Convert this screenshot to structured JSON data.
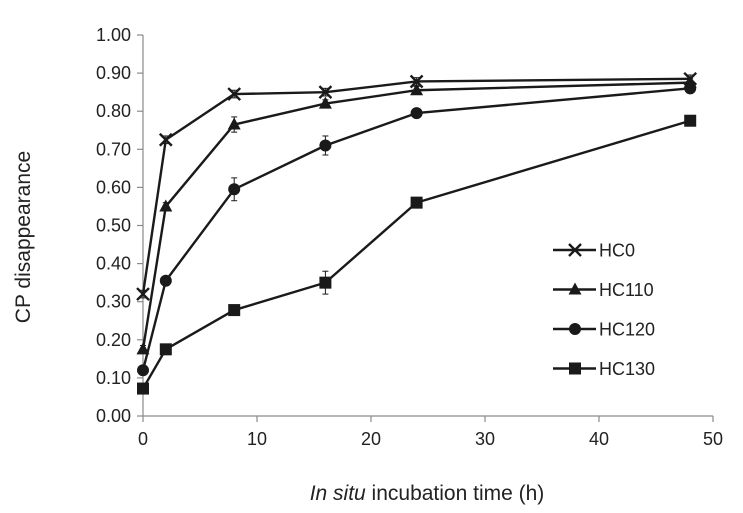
{
  "chart_data": {
    "type": "line",
    "xlabel_italic": "In situ",
    "xlabel_rest": " incubation time (h)",
    "ylabel": "CP disappearance",
    "xlim": [
      0,
      50
    ],
    "ylim": [
      0,
      1
    ],
    "xticks": [
      0,
      10,
      20,
      30,
      40,
      50
    ],
    "xtick_labels": [
      "0",
      "10",
      "20",
      "30",
      "40",
      "50"
    ],
    "yticks": [
      0,
      0.1,
      0.2,
      0.3,
      0.4,
      0.5,
      0.6,
      0.7,
      0.8,
      0.9,
      1.0
    ],
    "ytick_labels": [
      "0.00",
      "0.10",
      "0.20",
      "0.30",
      "0.40",
      "0.50",
      "0.60",
      "0.70",
      "0.80",
      "0.90",
      "1.00"
    ],
    "grid": false,
    "legend_position": "right",
    "line_color": "#1a1a1a",
    "x": [
      0,
      2,
      8,
      16,
      24,
      48
    ],
    "series": [
      {
        "name": "HC0",
        "marker": "x",
        "values": [
          0.32,
          0.725,
          0.845,
          0.85,
          0.878,
          0.885
        ],
        "errors": [
          0.01,
          0.01,
          0.01,
          0.01,
          0.01,
          0.01
        ]
      },
      {
        "name": "HC110",
        "marker": "triangle",
        "values": [
          0.175,
          0.55,
          0.765,
          0.82,
          0.855,
          0.875
        ],
        "errors": [
          0.01,
          0.01,
          0.02,
          0.01,
          0.01,
          0.01
        ]
      },
      {
        "name": "HC120",
        "marker": "circle",
        "values": [
          0.12,
          0.355,
          0.595,
          0.71,
          0.795,
          0.86
        ],
        "errors": [
          0.01,
          0.01,
          0.03,
          0.025,
          0.01,
          0.01
        ]
      },
      {
        "name": "HC130",
        "marker": "square",
        "values": [
          0.072,
          0.175,
          0.278,
          0.35,
          0.56,
          0.775
        ],
        "errors": [
          0.01,
          0.01,
          0.01,
          0.03,
          0.01,
          0.01
        ]
      }
    ]
  }
}
